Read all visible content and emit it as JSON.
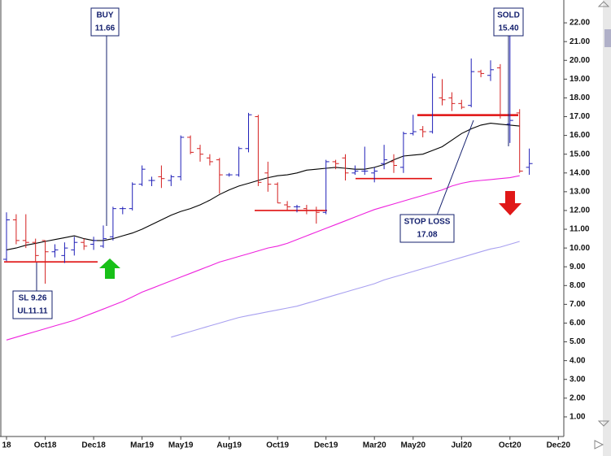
{
  "chart_data": {
    "type": "ohlc",
    "categories": [
      "18",
      null,
      null,
      null,
      "Oct18",
      null,
      null,
      null,
      null,
      "Dec18",
      null,
      null,
      null,
      null,
      "Mar19",
      null,
      null,
      null,
      "May19",
      null,
      null,
      null,
      null,
      "Aug19",
      null,
      null,
      null,
      null,
      "Oct19",
      null,
      null,
      null,
      null,
      "Dec19",
      null,
      null,
      null,
      null,
      "Mar20",
      null,
      null,
      null,
      "May20",
      null,
      null,
      null,
      null,
      "Jul20",
      null,
      null,
      null,
      null,
      "Oct20",
      null,
      null,
      null,
      null,
      "Dec20"
    ],
    "open": [
      9.4,
      11.5,
      10.4,
      10.3,
      10.4,
      9.8,
      9.6,
      9.9,
      10.3,
      10.2,
      10.1,
      10.6,
      12.1,
      12.1,
      13.4,
      13.6,
      13.8,
      13.6,
      13.8,
      15.9,
      15.3,
      14.8,
      14.7,
      13.9,
      13.9,
      15.3,
      17.0,
      14.0,
      13.4,
      12.3,
      12.2,
      12.1,
      12.0,
      11.9,
      14.6,
      14.8,
      14.0,
      14.1,
      14.0,
      14.5,
      14.6,
      14.3,
      16.1,
      16.3,
      16.2,
      18.0,
      18.0,
      17.7,
      17.6,
      19.4,
      19.2,
      19.6,
      16.6,
      17.2,
      14.3,
      null,
      null,
      null
    ],
    "high": [
      11.9,
      11.8,
      11.8,
      10.5,
      10.4,
      10.2,
      10.3,
      10.6,
      10.5,
      10.6,
      11.2,
      12.2,
      12.2,
      13.5,
      14.4,
      13.8,
      14.4,
      13.9,
      16.0,
      16.0,
      15.5,
      15.0,
      14.8,
      14.0,
      15.4,
      17.2,
      17.1,
      14.6,
      13.5,
      12.5,
      12.3,
      12.3,
      12.2,
      14.7,
      14.7,
      15.0,
      14.4,
      15.4,
      14.3,
      15.5,
      15.0,
      16.2,
      17.1,
      16.5,
      19.3,
      19.0,
      18.3,
      17.9,
      20.1,
      19.5,
      20.0,
      19.8,
      22.6,
      17.4,
      15.3,
      null,
      null,
      null
    ],
    "low": [
      9.3,
      10.2,
      10.0,
      9.3,
      8.1,
      9.5,
      9.2,
      9.6,
      9.9,
      9.9,
      10.0,
      10.4,
      11.8,
      12.0,
      13.3,
      13.3,
      13.2,
      13.3,
      13.6,
      15.0,
      14.6,
      14.4,
      12.9,
      13.8,
      13.8,
      15.1,
      13.3,
      13.0,
      12.4,
      12.0,
      11.9,
      11.8,
      11.3,
      11.8,
      14.2,
      13.6,
      13.9,
      13.9,
      13.5,
      14.2,
      14.0,
      14.0,
      16.0,
      15.9,
      16.1,
      17.6,
      17.3,
      17.4,
      17.5,
      19.1,
      18.9,
      16.9,
      15.6,
      14.0,
      13.9,
      null,
      null,
      null
    ],
    "close": [
      11.5,
      10.4,
      10.3,
      9.6,
      9.8,
      9.9,
      10.0,
      10.3,
      10.1,
      10.4,
      10.5,
      12.1,
      12.1,
      13.4,
      14.2,
      13.6,
      13.7,
      13.8,
      15.9,
      15.1,
      15.0,
      14.6,
      13.9,
      13.9,
      15.3,
      17.1,
      13.5,
      13.4,
      12.4,
      12.2,
      12.2,
      12.0,
      11.9,
      14.6,
      14.5,
      14.0,
      14.1,
      14.1,
      14.1,
      14.7,
      14.4,
      16.1,
      16.2,
      16.2,
      19.1,
      17.9,
      17.7,
      17.5,
      19.4,
      19.3,
      19.5,
      17.1,
      16.8,
      14.1,
      14.5,
      null,
      null,
      null
    ],
    "up_color": "#2020b8",
    "down_color": "#d42020",
    "lines": [
      {
        "color": "#000000",
        "values": [
          9.9,
          10.0,
          10.15,
          10.25,
          10.35,
          10.45,
          10.55,
          10.65,
          10.5,
          10.4,
          10.4,
          10.5,
          10.65,
          10.8,
          11.0,
          11.25,
          11.5,
          11.75,
          11.95,
          12.1,
          12.3,
          12.55,
          12.85,
          13.1,
          13.3,
          13.45,
          13.6,
          13.75,
          13.85,
          13.9,
          14.0,
          14.15,
          14.2,
          14.25,
          14.3,
          14.25,
          14.2,
          14.2,
          14.3,
          14.45,
          14.7,
          14.9,
          14.95,
          15.0,
          15.2,
          15.4,
          15.75,
          16.1,
          16.35,
          16.55,
          16.65,
          16.6,
          16.55,
          16.5,
          null,
          null,
          null,
          null
        ]
      },
      {
        "color": "#ee22dd",
        "values": [
          5.1,
          5.25,
          5.4,
          5.55,
          5.7,
          5.85,
          6.0,
          6.15,
          6.35,
          6.55,
          6.75,
          6.95,
          7.15,
          7.4,
          7.65,
          7.85,
          8.05,
          8.25,
          8.45,
          8.65,
          8.85,
          9.05,
          9.25,
          9.4,
          9.55,
          9.7,
          9.85,
          10.0,
          10.1,
          10.25,
          10.45,
          10.65,
          10.85,
          11.05,
          11.25,
          11.45,
          11.65,
          11.85,
          12.05,
          12.2,
          12.35,
          12.5,
          12.65,
          12.8,
          12.95,
          13.1,
          13.3,
          13.45,
          13.55,
          13.6,
          13.65,
          13.7,
          13.75,
          13.85,
          null,
          null,
          null,
          null
        ]
      },
      {
        "color": "#a8a0f0",
        "values": [
          null,
          null,
          null,
          null,
          null,
          null,
          null,
          null,
          null,
          null,
          null,
          null,
          null,
          null,
          null,
          null,
          null,
          5.25,
          5.4,
          5.55,
          5.7,
          5.85,
          6.0,
          6.15,
          6.3,
          6.4,
          6.5,
          6.6,
          6.7,
          6.8,
          6.9,
          7.05,
          7.2,
          7.35,
          7.5,
          7.65,
          7.8,
          7.95,
          8.1,
          8.3,
          8.45,
          8.6,
          8.75,
          8.9,
          9.05,
          9.2,
          9.35,
          9.5,
          9.65,
          9.8,
          9.95,
          10.05,
          10.2,
          10.35,
          null,
          null,
          null,
          null
        ]
      }
    ],
    "levels": [
      9.26,
      12.0,
      13.7,
      17.08
    ],
    "level_color": "#e01010",
    "annotations": [
      {
        "lines": [
          "BUY",
          "11.66"
        ]
      },
      {
        "lines": [
          "SOLD",
          "15.40"
        ]
      },
      {
        "lines": [
          "STOP LOSS",
          "17.08"
        ]
      },
      {
        "lines": [
          "SL 9.26",
          "UL11.11"
        ]
      }
    ],
    "ylim": [
      0,
      23
    ],
    "yticks": [
      {
        "value": 1,
        "label": "1.00"
      },
      {
        "value": 2,
        "label": "2.00"
      },
      {
        "value": 3,
        "label": "3.00"
      },
      {
        "value": 4,
        "label": "4.00"
      },
      {
        "value": 5,
        "label": "5.00"
      },
      {
        "value": 6,
        "label": "6.00"
      },
      {
        "value": 7,
        "label": "7.00"
      },
      {
        "value": 8,
        "label": "8.00"
      },
      {
        "value": 9,
        "label": "9.00"
      },
      {
        "value": 10,
        "label": "10.00"
      },
      {
        "value": 11,
        "label": "11.00"
      },
      {
        "value": 12,
        "label": "12.00"
      },
      {
        "value": 13,
        "label": "13.00"
      },
      {
        "value": 14,
        "label": "14.00"
      },
      {
        "value": 15,
        "label": "15.00"
      },
      {
        "value": 16,
        "label": "16.00"
      },
      {
        "value": 17,
        "label": "17.00"
      },
      {
        "value": 18,
        "label": "18.00"
      },
      {
        "value": 19,
        "label": "19.00"
      },
      {
        "value": 20,
        "label": "20.00"
      },
      {
        "value": 21,
        "label": "21.00"
      },
      {
        "value": 22,
        "label": "22.00"
      }
    ]
  }
}
